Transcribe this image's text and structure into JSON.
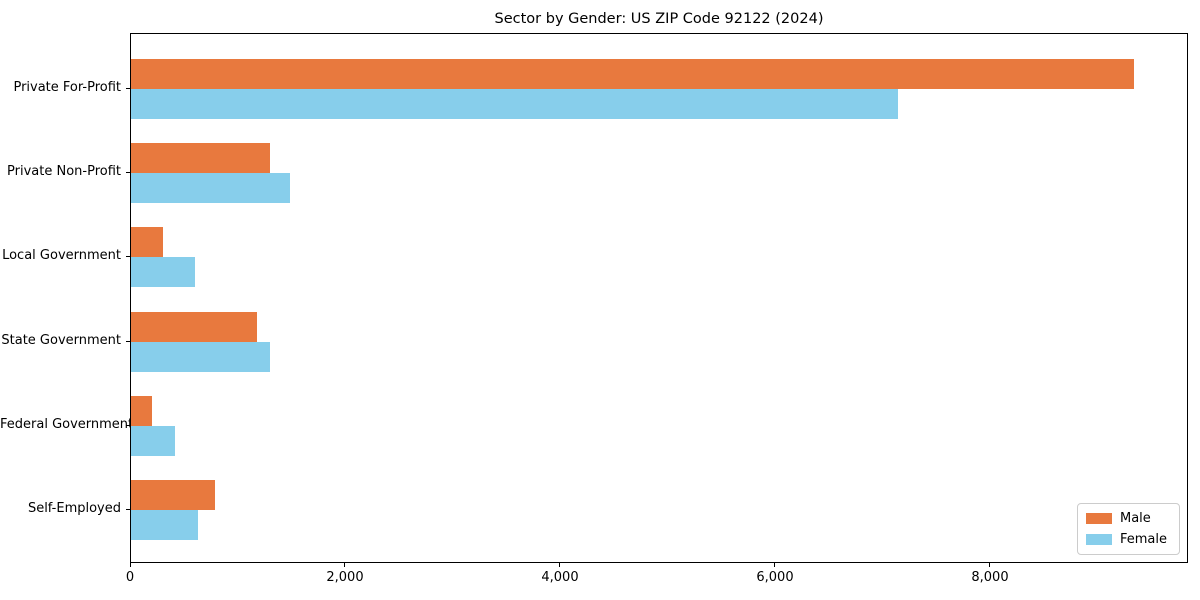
{
  "chart_data": {
    "type": "bar",
    "orientation": "horizontal",
    "title": "Sector by Gender: US ZIP Code 92122 (2024)",
    "categories": [
      "Private For-Profit",
      "Private Non-Profit",
      "Local Government",
      "State Government",
      "Federal Government",
      "Self-Employed"
    ],
    "series": [
      {
        "name": "Male",
        "color": "#e8793e",
        "values": [
          9350,
          1300,
          300,
          1170,
          200,
          780
        ]
      },
      {
        "name": "Female",
        "color": "#87ceeb",
        "values": [
          7150,
          1480,
          600,
          1300,
          410,
          620
        ]
      }
    ],
    "xlabel": "",
    "ylabel": "",
    "xlim": [
      0,
      9842
    ],
    "xticks": {
      "values": [
        0,
        2000,
        4000,
        6000,
        8000
      ],
      "labels": [
        "0",
        "2,000",
        "4,000",
        "6,000",
        "8,000"
      ]
    },
    "grid": false,
    "legend": {
      "position": "lower right",
      "entries": [
        "Male",
        "Female"
      ]
    }
  }
}
